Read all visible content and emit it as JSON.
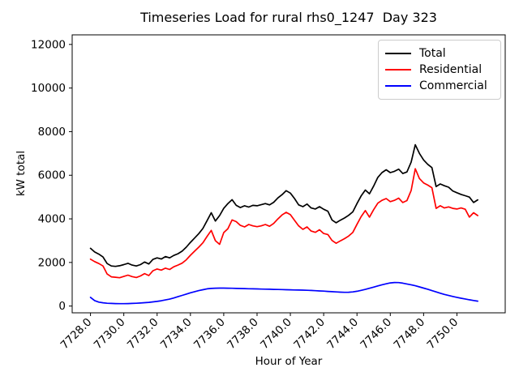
{
  "chart_data": {
    "type": "line",
    "title": "Timeseries Load for rural rhs0_1247  Day 323",
    "xlabel": "Hour of Year",
    "ylabel": "kW total",
    "grid": false,
    "legend_position": "upper right",
    "xlim": [
      7726.9,
      7752.9
    ],
    "ylim": [
      -310,
      12440
    ],
    "x_ticks": [
      7728,
      7730,
      7732,
      7734,
      7736,
      7738,
      7740,
      7742,
      7744,
      7746,
      7748,
      7750
    ],
    "x_tick_labels": [
      "7728.0",
      "7730.0",
      "7732.0",
      "7734.0",
      "7736.0",
      "7738.0",
      "7740.0",
      "7742.0",
      "7744.0",
      "7746.0",
      "7748.0",
      "7750.0"
    ],
    "y_ticks": [
      0,
      2000,
      4000,
      6000,
      8000,
      10000,
      12000
    ],
    "y_tick_labels": [
      "0",
      "2000",
      "4000",
      "6000",
      "8000",
      "10000",
      "12000"
    ],
    "x": [
      7728.0,
      7728.25,
      7728.5,
      7728.75,
      7729.0,
      7729.25,
      7729.5,
      7729.75,
      7730.0,
      7730.25,
      7730.5,
      7730.75,
      7731.0,
      7731.25,
      7731.5,
      7731.75,
      7732.0,
      7732.25,
      7732.5,
      7732.75,
      7733.0,
      7733.25,
      7733.5,
      7733.75,
      7734.0,
      7734.25,
      7734.5,
      7734.75,
      7735.0,
      7735.25,
      7735.5,
      7735.75,
      7736.0,
      7736.25,
      7736.5,
      7736.75,
      7737.0,
      7737.25,
      7737.5,
      7737.75,
      7738.0,
      7738.25,
      7738.5,
      7738.75,
      7739.0,
      7739.25,
      7739.5,
      7739.75,
      7740.0,
      7740.25,
      7740.5,
      7740.75,
      7741.0,
      7741.25,
      7741.5,
      7741.75,
      7742.0,
      7742.25,
      7742.5,
      7742.75,
      7743.0,
      7743.25,
      7743.5,
      7743.75,
      7744.0,
      7744.25,
      7744.5,
      7744.75,
      7745.0,
      7745.25,
      7745.5,
      7745.75,
      7746.0,
      7746.25,
      7746.5,
      7746.75,
      7747.0,
      7747.25,
      7747.5,
      7747.75,
      7748.0,
      7748.25,
      7748.5,
      7748.75,
      7749.0,
      7749.25,
      7749.5,
      7749.75,
      7750.0,
      7750.25,
      7750.5,
      7750.75,
      7751.0,
      7751.25
    ],
    "series": [
      {
        "name": "Total",
        "color": "#000000",
        "values": [
          2650,
          2480,
          2380,
          2250,
          1950,
          1840,
          1820,
          1850,
          1900,
          1960,
          1880,
          1840,
          1900,
          2020,
          1930,
          2140,
          2210,
          2160,
          2270,
          2210,
          2320,
          2400,
          2520,
          2700,
          2920,
          3120,
          3320,
          3560,
          3920,
          4280,
          3900,
          4150,
          4480,
          4700,
          4880,
          4620,
          4520,
          4600,
          4540,
          4620,
          4600,
          4650,
          4700,
          4640,
          4760,
          4960,
          5110,
          5290,
          5180,
          4930,
          4640,
          4560,
          4680,
          4500,
          4450,
          4560,
          4440,
          4350,
          3950,
          3820,
          3940,
          4040,
          4160,
          4320,
          4700,
          5050,
          5320,
          5150,
          5500,
          5900,
          6120,
          6250,
          6120,
          6180,
          6280,
          6080,
          6150,
          6600,
          7400,
          7000,
          6700,
          6500,
          6350,
          5480,
          5600,
          5520,
          5450,
          5280,
          5200,
          5120,
          5060,
          5000,
          4750,
          4870
        ]
      },
      {
        "name": "Residential",
        "color": "#ff0000",
        "values": [
          2150,
          2040,
          1950,
          1840,
          1470,
          1340,
          1320,
          1300,
          1360,
          1420,
          1350,
          1310,
          1380,
          1490,
          1400,
          1620,
          1700,
          1650,
          1740,
          1680,
          1800,
          1880,
          1970,
          2120,
          2330,
          2520,
          2700,
          2900,
          3200,
          3470,
          3000,
          2830,
          3370,
          3550,
          3950,
          3870,
          3700,
          3630,
          3740,
          3680,
          3640,
          3680,
          3740,
          3660,
          3790,
          4000,
          4180,
          4300,
          4190,
          3930,
          3680,
          3520,
          3630,
          3440,
          3380,
          3500,
          3330,
          3280,
          3010,
          2880,
          2990,
          3090,
          3210,
          3380,
          3750,
          4100,
          4380,
          4080,
          4420,
          4720,
          4850,
          4930,
          4790,
          4850,
          4950,
          4750,
          4840,
          5300,
          6300,
          5850,
          5650,
          5550,
          5430,
          4480,
          4600,
          4500,
          4550,
          4480,
          4450,
          4500,
          4440,
          4080,
          4280,
          4150
        ]
      },
      {
        "name": "Commercial",
        "color": "#0000ff",
        "values": [
          400,
          250,
          180,
          150,
          130,
          120,
          115,
          110,
          110,
          115,
          120,
          130,
          140,
          155,
          170,
          190,
          215,
          245,
          280,
          320,
          370,
          430,
          490,
          550,
          610,
          660,
          710,
          750,
          790,
          810,
          820,
          825,
          825,
          820,
          815,
          810,
          805,
          800,
          795,
          790,
          785,
          780,
          775,
          770,
          765,
          760,
          755,
          750,
          745,
          740,
          735,
          730,
          725,
          715,
          705,
          695,
          685,
          672,
          660,
          648,
          638,
          632,
          635,
          650,
          680,
          720,
          765,
          815,
          870,
          925,
          975,
          1020,
          1060,
          1080,
          1075,
          1050,
          1015,
          975,
          930,
          880,
          825,
          770,
          710,
          650,
          590,
          535,
          485,
          440,
          400,
          360,
          325,
          290,
          255,
          225
        ]
      }
    ]
  }
}
